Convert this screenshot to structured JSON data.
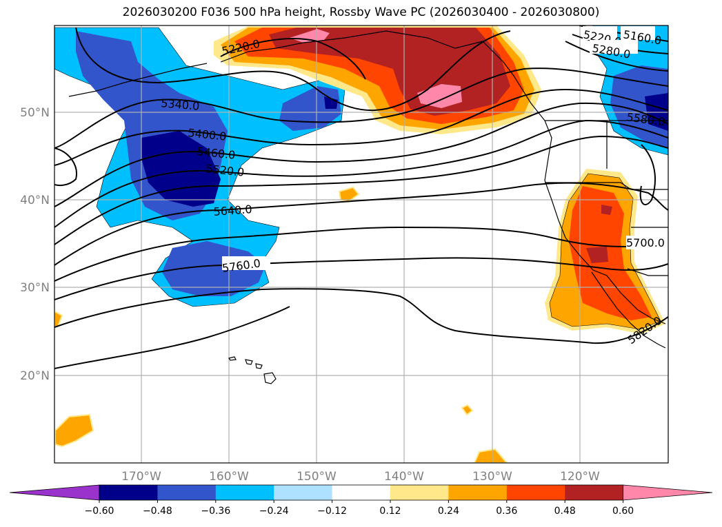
{
  "title": "2026030200 F036 500 hPa height, Rossby Wave PC (2026030400 - 2026030800)",
  "lat_labels": [
    "50°N",
    "40°N",
    "30°N",
    "20°N"
  ],
  "lon_labels": [
    "170°W",
    "160°W",
    "150°W",
    "140°W",
    "130°W",
    "120°W"
  ],
  "contour_labels": [
    "5160.0",
    "5220.0",
    "5220.0",
    "5280.0",
    "5340.0",
    "5400.0",
    "5460.0",
    "5520.0",
    "5580.0",
    "5640.0",
    "5700.0",
    "5760.0",
    "5820.0"
  ],
  "colorbar": {
    "ticks": [
      "−0.60",
      "−0.48",
      "−0.36",
      "−0.24",
      "−0.12",
      "0.12",
      "0.24",
      "0.36",
      "0.48",
      "0.60"
    ],
    "colors": [
      "#9933cc",
      "#00008b",
      "#3355cc",
      "#00bfff",
      "#aee0ff",
      "#ffffff",
      "#ffe88a",
      "#ffa500",
      "#ff4500",
      "#b22222",
      "#ff88aa"
    ]
  }
}
